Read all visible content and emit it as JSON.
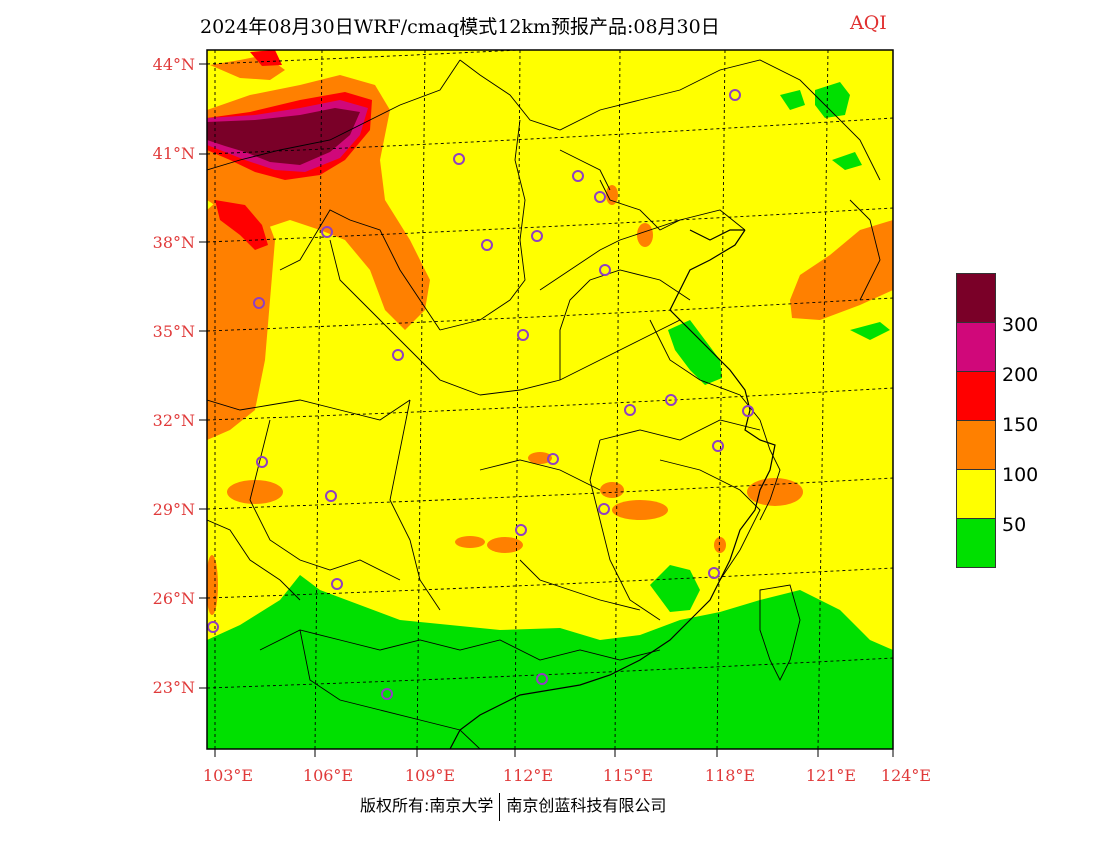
{
  "header": {
    "title": "2024年08月30日WRF/cmaq模式12km预报产品:08月30日",
    "variable": "AQI"
  },
  "axes": {
    "lat_labels": [
      "44°N",
      "41°N",
      "38°N",
      "35°N",
      "32°N",
      "29°N",
      "26°N",
      "23°N"
    ],
    "lon_labels": [
      "103°E",
      "106°E",
      "109°E",
      "112°E",
      "115°E",
      "118°E",
      "121°E",
      "124°E"
    ]
  },
  "legend": {
    "colors": [
      "#7a0028",
      "#d0087a",
      "#ff0000",
      "#ff8000",
      "#ffff00",
      "#00e000"
    ],
    "values": [
      "300",
      "200",
      "150",
      "100",
      "50"
    ]
  },
  "copyright": {
    "left": "版权所有:南京大学",
    "right": "南京创蓝科技有限公司"
  },
  "colors": {
    "good": "#00e000",
    "moderate": "#ffff00",
    "sensitive": "#ff8000",
    "unhealthy": "#ff0000",
    "very_unhealthy": "#d0087a",
    "hazardous": "#7a0028",
    "label_red": "#e03a3a",
    "station_marker": "#9040c0"
  }
}
